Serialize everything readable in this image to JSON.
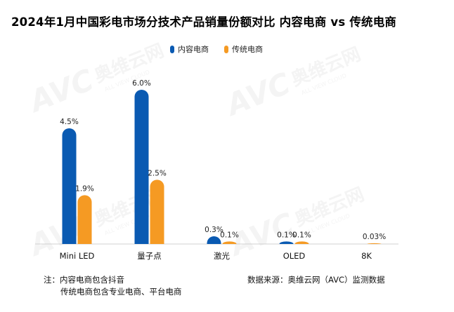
{
  "chart_data": {
    "type": "bar",
    "title": "2024年1月中国彩电市场分技术产品销量份额对比  内容电商 vs 传统电商",
    "categories": [
      "Mini LED",
      "量子点",
      "激光",
      "OLED",
      "8K"
    ],
    "series": [
      {
        "name": "内容电商",
        "values": [
          4.5,
          6.0,
          0.3,
          0.1,
          0.0
        ],
        "labels": [
          "4.5%",
          "6.0%",
          "0.3%",
          "0.1%",
          ""
        ]
      },
      {
        "name": "传统电商",
        "values": [
          1.9,
          2.5,
          0.1,
          0.1,
          0.03
        ],
        "labels": [
          "1.9%",
          "2.5%",
          "0.1%",
          "0.1%",
          "0.03%"
        ]
      }
    ],
    "ylim": [
      0,
      6.5
    ],
    "xlabel": "",
    "ylabel": "",
    "legend": "top-center",
    "grid": false
  },
  "colors": {
    "series1": "#0a5ab2",
    "series2": "#f59a23"
  },
  "notes": {
    "line1": "注：内容电商包含抖音",
    "line2": "传统电商包含专业电商、平台电商",
    "source": "数据来源：奥维云网（AVC）监测数据"
  },
  "watermark": {
    "brand": "AVC",
    "cn": "奥维云网",
    "en": "ALL VIEW CLOUD"
  }
}
